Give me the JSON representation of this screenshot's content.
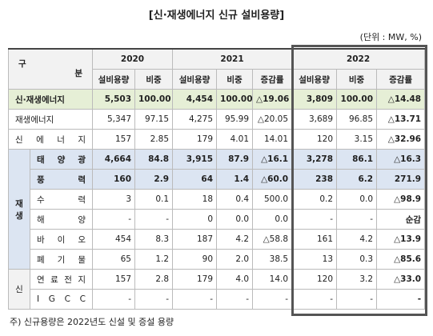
{
  "title": "[신·재생에너지 신규 설비용량]",
  "unit": "(단위 : MW, %)",
  "header": {
    "corner_left": "구",
    "corner_right": "분",
    "years": [
      "2020",
      "2021",
      "2022"
    ],
    "columns": [
      "설비용량",
      "비중",
      "설비용량",
      "비중",
      "증감률",
      "설비용량",
      "비중",
      "증감률"
    ]
  },
  "rows": [
    {
      "label": "신·재생에너지",
      "cells": [
        "5,503",
        "100.00",
        "4,454",
        "100.00",
        "△19.06",
        "3,809",
        "100.00",
        "△14.48"
      ]
    },
    {
      "label": "재생에너지",
      "cells": [
        "5,347",
        "97.15",
        "4,275",
        "95.99",
        "△20.05",
        "3,689",
        "96.85",
        "△13.71"
      ]
    },
    {
      "label": "신 에 너 지",
      "cells": [
        "157",
        "2.85",
        "179",
        "4.01",
        "14.01",
        "120",
        "3.15",
        "△32.96"
      ]
    }
  ],
  "groups": [
    {
      "label": "재생",
      "rows": [
        {
          "label": "태 양 광",
          "cells": [
            "4,664",
            "84.8",
            "3,915",
            "87.9",
            "△16.1",
            "3,278",
            "86.1",
            "△16.3"
          ]
        },
        {
          "label": "풍 력",
          "cells": [
            "160",
            "2.9",
            "64",
            "1.4",
            "△60.0",
            "238",
            "6.2",
            "271.9"
          ]
        },
        {
          "label": "수 력",
          "cells": [
            "3",
            "0.1",
            "18",
            "0.4",
            "500.0",
            "0.2",
            "0.0",
            "△98.9"
          ]
        },
        {
          "label": "해 양",
          "cells": [
            "-",
            "-",
            "0",
            "0.0",
            "0.0",
            "-",
            "-",
            "순감"
          ]
        },
        {
          "label": "바 이 오",
          "cells": [
            "454",
            "8.3",
            "187",
            "4.2",
            "△58.8",
            "161",
            "4.2",
            "△13.9"
          ]
        },
        {
          "label": "폐 기 물",
          "cells": [
            "65",
            "1.2",
            "90",
            "2.0",
            "38.5",
            "13",
            "0.3",
            "△85.6"
          ]
        }
      ]
    },
    {
      "label": "신",
      "rows": [
        {
          "label": "연 료 전 지",
          "cells": [
            "157",
            "2.8",
            "179",
            "4.0",
            "14.0",
            "120",
            "3.2",
            "△33.0"
          ]
        },
        {
          "label": "I G C C",
          "cells": [
            "-",
            "-",
            "-",
            "-",
            "-",
            "-",
            "-",
            "-"
          ]
        }
      ]
    }
  ],
  "footnote": "주) 신규용량은 2022년도 신설 및 증설 용량"
}
